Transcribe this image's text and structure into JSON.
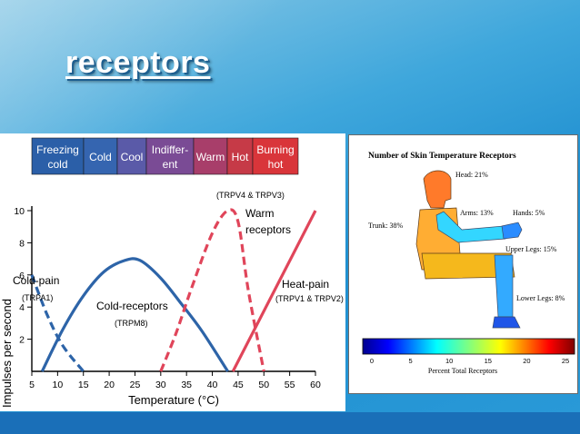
{
  "slide": {
    "title": "receptors"
  },
  "left_figure": {
    "temperature_bands": [
      {
        "line1": "Freezing",
        "line2": "cold",
        "color": "#2b5fa8"
      },
      {
        "line1": "Cold",
        "line2": "",
        "color": "#3565b0"
      },
      {
        "line1": "Cool",
        "line2": "",
        "color": "#5a5aa8"
      },
      {
        "line1": "Indiffer-",
        "line2": "ent",
        "color": "#7a4b95"
      },
      {
        "line1": "Warm",
        "line2": "",
        "color": "#a83e6a"
      },
      {
        "line1": "Hot",
        "line2": "",
        "color": "#c63a47"
      },
      {
        "line1": "Burning",
        "line2": "hot",
        "color": "#d9353a"
      }
    ],
    "chart_data": {
      "type": "line",
      "xlabel": "Temperature (°C)",
      "ylabel": "Impulses per second",
      "xlim": [
        5,
        60
      ],
      "ylim": [
        0,
        10
      ],
      "x_ticks": [
        5,
        10,
        15,
        20,
        25,
        30,
        35,
        40,
        45,
        50,
        55,
        60
      ],
      "y_ticks": [
        2,
        4,
        6,
        8,
        10
      ],
      "series": [
        {
          "name": "Cold-pain",
          "sub": "(TRPA1)",
          "color": "#2d64a8",
          "style": "dashed",
          "points": [
            [
              5,
              6
            ],
            [
              8,
              3.5
            ],
            [
              11,
              1.6
            ],
            [
              15,
              0
            ]
          ]
        },
        {
          "name": "Cold-receptors",
          "sub": "(TRPM8)",
          "color": "#2d64a8",
          "style": "solid",
          "points": [
            [
              7,
              0
            ],
            [
              11,
              2.6
            ],
            [
              15,
              4.7
            ],
            [
              19,
              6.2
            ],
            [
              23,
              6.9
            ],
            [
              26,
              6.9
            ],
            [
              30,
              5.8
            ],
            [
              34,
              4.2
            ],
            [
              38,
              2.5
            ],
            [
              43,
              0
            ]
          ]
        },
        {
          "name": "Warm receptors",
          "sub": "(TRPV4 & TRPV3)",
          "color": "#e0455a",
          "style": "dashed",
          "points": [
            [
              30,
              0
            ],
            [
              33,
              2.4
            ],
            [
              36,
              5.2
            ],
            [
              40,
              8.6
            ],
            [
              43,
              10
            ],
            [
              45,
              9.3
            ],
            [
              47,
              5
            ],
            [
              50,
              0
            ]
          ]
        },
        {
          "name": "Heat-pain",
          "sub": "(TRPV1 & TRPV2)",
          "color": "#e0455a",
          "style": "solid",
          "points": [
            [
              44,
              0
            ],
            [
              60,
              10
            ]
          ]
        }
      ],
      "labels": {
        "cold_pain": "Cold-pain",
        "cold_pain_sub": "(TRPA1)",
        "cold_receptors": "Cold-receptors",
        "cold_receptors_sub": "(TRPM8)",
        "warm_top": "(TRPV4 & TRPV3)",
        "warm_line1": "Warm",
        "warm_line2": "receptors",
        "heat_pain": "Heat-pain",
        "heat_pain_sub": "(TRPV1 & TRPV2)"
      }
    }
  },
  "right_figure": {
    "title": "Number of Skin Temperature Receptors",
    "body_labels": {
      "head": "Head: 21%",
      "arms": "Arms: 13%",
      "hands": "Hands: 5%",
      "trunk": "Trunk: 38%",
      "upper_legs": "Upper Legs: 15%",
      "lower_legs": "Lower Legs: 8%"
    },
    "colorbar": {
      "ticks": [
        "0",
        "5",
        "10",
        "15",
        "20",
        "25"
      ],
      "label": "Percent Total Receptors",
      "range": [
        0,
        25
      ]
    }
  }
}
